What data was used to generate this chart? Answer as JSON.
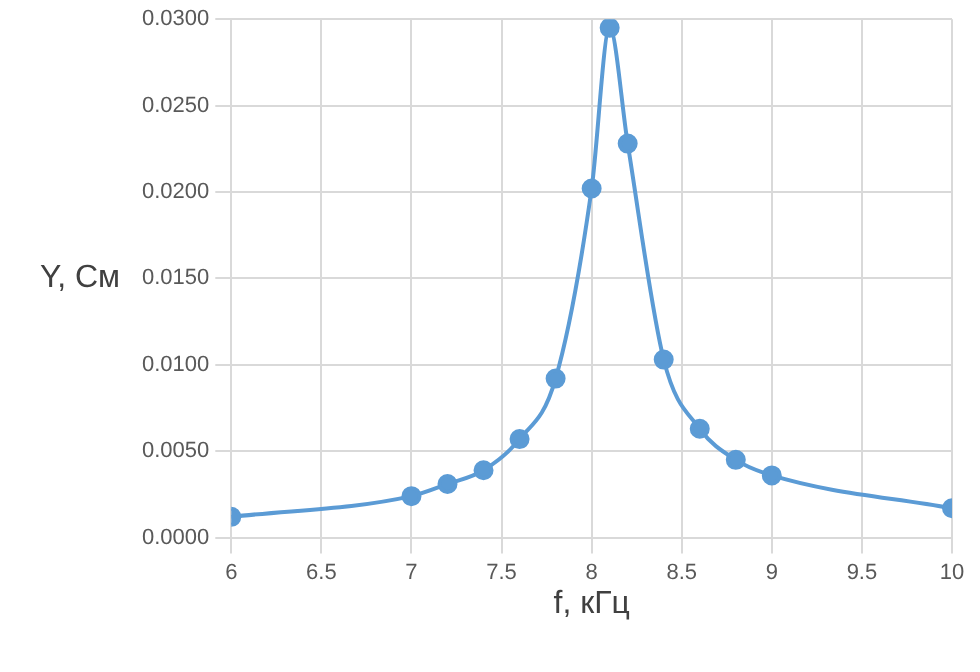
{
  "chart_data": {
    "type": "line",
    "xlabel": "f, кГц",
    "ylabel": "Y, См",
    "x": [
      6,
      7,
      7.2,
      7.4,
      7.6,
      7.8,
      8.0,
      8.1,
      8.2,
      8.4,
      8.6,
      8.8,
      9.0,
      10
    ],
    "series": [
      {
        "color": "#5b9bd5",
        "values": [
          0.0012,
          0.0024,
          0.0031,
          0.0039,
          0.0057,
          0.0092,
          0.0202,
          0.0295,
          0.0228,
          0.0103,
          0.0063,
          0.0045,
          0.0036,
          0.0017
        ]
      }
    ],
    "xlim": [
      6,
      10
    ],
    "xticks": [
      6,
      6.5,
      7,
      7.5,
      8,
      8.5,
      9,
      9.5,
      10
    ],
    "ylim": [
      0,
      0.03
    ],
    "yticks": [
      {
        "value": 0,
        "label": "0.0000"
      },
      {
        "value": 0.005,
        "label": "0.0050"
      },
      {
        "value": 0.01,
        "label": "0.0100"
      },
      {
        "value": 0.015,
        "label": "0.0150"
      },
      {
        "value": 0.02,
        "label": "0.0200"
      },
      {
        "value": 0.025,
        "label": "0.0250"
      },
      {
        "value": 0.03,
        "label": "0.0300"
      }
    ],
    "grid": true,
    "marker": "circle",
    "line_style": "solid",
    "legend": false
  }
}
